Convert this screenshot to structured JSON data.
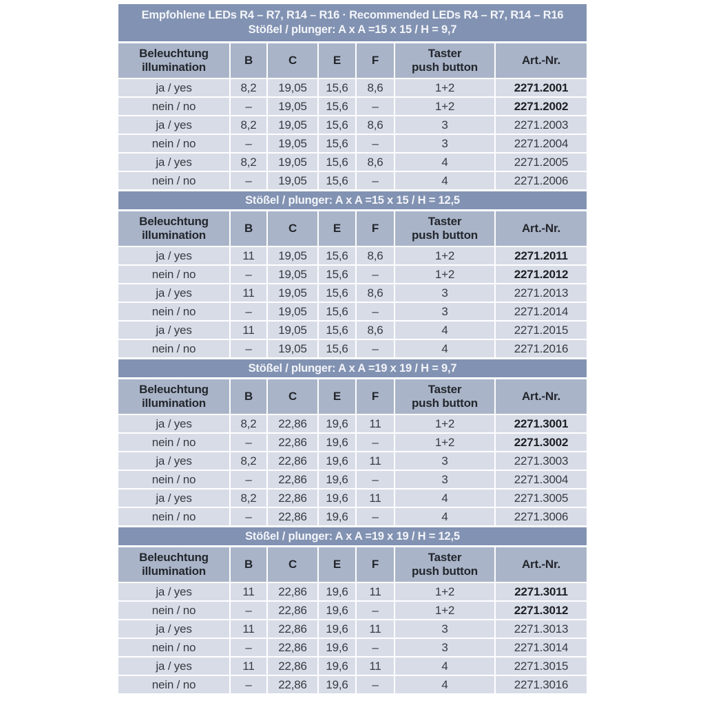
{
  "colors": {
    "band": "#8292b2",
    "band_text": "#f3f5f9",
    "header_cell": "#a9b4c8",
    "row_cell": "#d8dce7",
    "page_bg": "#ffffff"
  },
  "title": "Empfohlene LEDs R4 – R7, R14 – R16 · Recommended LEDs R4 – R7, R14 – R16",
  "columns": {
    "illumination": {
      "line1": "Beleuchtung",
      "line2": "illumination"
    },
    "b": "B",
    "c": "C",
    "e": "E",
    "f": "F",
    "taster": {
      "line1": "Taster",
      "line2": "push button"
    },
    "art": "Art.-Nr."
  },
  "sections": [
    {
      "subtitle": "Stößel / plunger: A x A =15 x 15 / H = 9,7",
      "rows": [
        {
          "illumination": "ja / yes",
          "B": "8,2",
          "C": "19,05",
          "E": "15,6",
          "F": "8,6",
          "taster": "1+2",
          "art_nr": "2271.2001",
          "art_bold": true
        },
        {
          "illumination": "nein / no",
          "B": "–",
          "C": "19,05",
          "E": "15,6",
          "F": "–",
          "taster": "1+2",
          "art_nr": "2271.2002",
          "art_bold": true
        },
        {
          "illumination": "ja / yes",
          "B": "8,2",
          "C": "19,05",
          "E": "15,6",
          "F": "8,6",
          "taster": "3",
          "art_nr": "2271.2003",
          "art_bold": false
        },
        {
          "illumination": "nein / no",
          "B": "–",
          "C": "19,05",
          "E": "15,6",
          "F": "–",
          "taster": "3",
          "art_nr": "2271.2004",
          "art_bold": false
        },
        {
          "illumination": "ja / yes",
          "B": "8,2",
          "C": "19,05",
          "E": "15,6",
          "F": "8,6",
          "taster": "4",
          "art_nr": "2271.2005",
          "art_bold": false
        },
        {
          "illumination": "nein / no",
          "B": "–",
          "C": "19,05",
          "E": "15,6",
          "F": "–",
          "taster": "4",
          "art_nr": "2271.2006",
          "art_bold": false
        }
      ]
    },
    {
      "subtitle": "Stößel / plunger: A x A =15 x 15 / H = 12,5",
      "rows": [
        {
          "illumination": "ja / yes",
          "B": "11",
          "C": "19,05",
          "E": "15,6",
          "F": "8,6",
          "taster": "1+2",
          "art_nr": "2271.2011",
          "art_bold": true
        },
        {
          "illumination": "nein / no",
          "B": "–",
          "C": "19,05",
          "E": "15,6",
          "F": "–",
          "taster": "1+2",
          "art_nr": "2271.2012",
          "art_bold": true
        },
        {
          "illumination": "ja / yes",
          "B": "11",
          "C": "19,05",
          "E": "15,6",
          "F": "8,6",
          "taster": "3",
          "art_nr": "2271.2013",
          "art_bold": false
        },
        {
          "illumination": "nein / no",
          "B": "–",
          "C": "19,05",
          "E": "15,6",
          "F": "–",
          "taster": "3",
          "art_nr": "2271.2014",
          "art_bold": false
        },
        {
          "illumination": "ja / yes",
          "B": "11",
          "C": "19,05",
          "E": "15,6",
          "F": "8,6",
          "taster": "4",
          "art_nr": "2271.2015",
          "art_bold": false
        },
        {
          "illumination": "nein / no",
          "B": "–",
          "C": "19,05",
          "E": "15,6",
          "F": "–",
          "taster": "4",
          "art_nr": "2271.2016",
          "art_bold": false
        }
      ]
    },
    {
      "subtitle": "Stößel / plunger: A x A =19 x 19 / H = 9,7",
      "rows": [
        {
          "illumination": "ja / yes",
          "B": "8,2",
          "C": "22,86",
          "E": "19,6",
          "F": "11",
          "taster": "1+2",
          "art_nr": "2271.3001",
          "art_bold": true
        },
        {
          "illumination": "nein / no",
          "B": "–",
          "C": "22,86",
          "E": "19,6",
          "F": "–",
          "taster": "1+2",
          "art_nr": "2271.3002",
          "art_bold": true
        },
        {
          "illumination": "ja / yes",
          "B": "8,2",
          "C": "22,86",
          "E": "19,6",
          "F": "11",
          "taster": "3",
          "art_nr": "2271.3003",
          "art_bold": false
        },
        {
          "illumination": "nein / no",
          "B": "–",
          "C": "22,86",
          "E": "19,6",
          "F": "–",
          "taster": "3",
          "art_nr": "2271.3004",
          "art_bold": false
        },
        {
          "illumination": "ja / yes",
          "B": "8,2",
          "C": "22,86",
          "E": "19,6",
          "F": "11",
          "taster": "4",
          "art_nr": "2271.3005",
          "art_bold": false
        },
        {
          "illumination": "nein / no",
          "B": "–",
          "C": "22,86",
          "E": "19,6",
          "F": "–",
          "taster": "4",
          "art_nr": "2271.3006",
          "art_bold": false
        }
      ]
    },
    {
      "subtitle": "Stößel / plunger: A x A =19 x 19 / H = 12,5",
      "rows": [
        {
          "illumination": "ja / yes",
          "B": "11",
          "C": "22,86",
          "E": "19,6",
          "F": "11",
          "taster": "1+2",
          "art_nr": "2271.3011",
          "art_bold": true
        },
        {
          "illumination": "nein / no",
          "B": "–",
          "C": "22,86",
          "E": "19,6",
          "F": "–",
          "taster": "1+2",
          "art_nr": "2271.3012",
          "art_bold": true
        },
        {
          "illumination": "ja / yes",
          "B": "11",
          "C": "22,86",
          "E": "19,6",
          "F": "11",
          "taster": "3",
          "art_nr": "2271.3013",
          "art_bold": false
        },
        {
          "illumination": "nein / no",
          "B": "–",
          "C": "22,86",
          "E": "19,6",
          "F": "–",
          "taster": "3",
          "art_nr": "2271.3014",
          "art_bold": false
        },
        {
          "illumination": "ja / yes",
          "B": "11",
          "C": "22,86",
          "E": "19,6",
          "F": "11",
          "taster": "4",
          "art_nr": "2271.3015",
          "art_bold": false
        },
        {
          "illumination": "nein / no",
          "B": "–",
          "C": "22,86",
          "E": "19,6",
          "F": "–",
          "taster": "4",
          "art_nr": "2271.3016",
          "art_bold": false
        }
      ]
    }
  ]
}
